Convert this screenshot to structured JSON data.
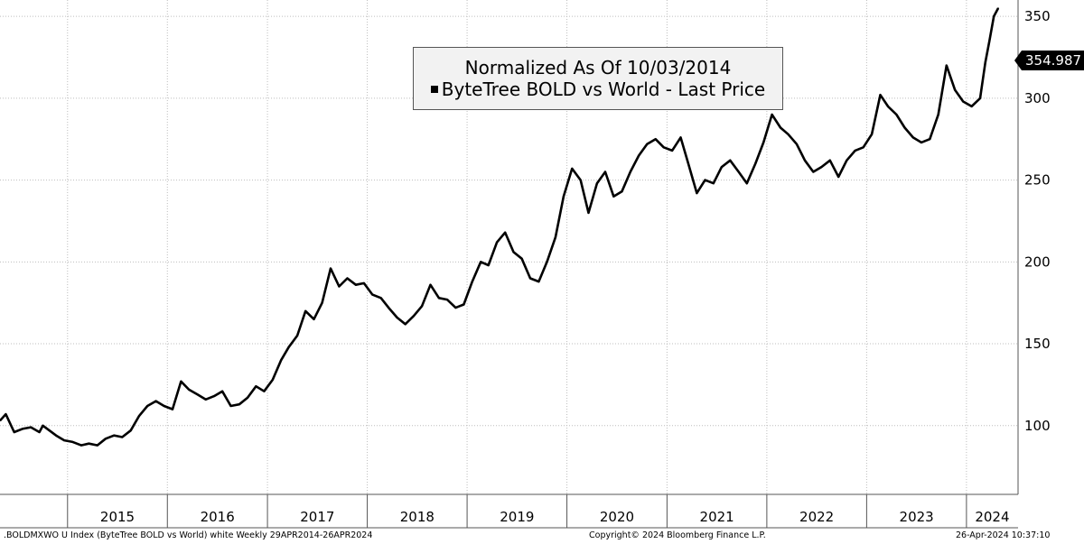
{
  "chart_data": {
    "type": "line",
    "title": "Normalized As Of 10/03/2014",
    "series": [
      {
        "name": "ByteTree BOLD vs World - Last Price",
        "color": "#000000",
        "x": [
          "2014-04-29",
          "2014-05-20",
          "2014-06-20",
          "2014-07-20",
          "2014-08-20",
          "2014-09-20",
          "2014-10-03",
          "2014-11-20",
          "2014-12-20",
          "2015-01-20",
          "2015-02-20",
          "2015-03-20",
          "2015-04-20",
          "2015-05-20",
          "2015-06-20",
          "2015-07-20",
          "2015-08-20",
          "2015-09-20",
          "2015-10-20",
          "2015-11-20",
          "2015-12-20",
          "2016-01-20",
          "2016-02-20",
          "2016-03-20",
          "2016-04-20",
          "2016-05-20",
          "2016-06-20",
          "2016-07-20",
          "2016-08-20",
          "2016-09-20",
          "2016-10-20",
          "2016-11-20",
          "2016-12-20",
          "2017-01-20",
          "2017-02-20",
          "2017-03-20",
          "2017-04-20",
          "2017-05-20",
          "2017-06-20",
          "2017-07-20",
          "2017-08-20",
          "2017-09-20",
          "2017-10-20",
          "2017-11-20",
          "2017-12-20",
          "2018-01-20",
          "2018-02-20",
          "2018-03-20",
          "2018-04-20",
          "2018-05-20",
          "2018-06-20",
          "2018-07-20",
          "2018-08-20",
          "2018-09-20",
          "2018-10-20",
          "2018-11-20",
          "2018-12-20",
          "2019-01-20",
          "2019-02-20",
          "2019-03-20",
          "2019-04-20",
          "2019-05-20",
          "2019-06-20",
          "2019-07-20",
          "2019-08-20",
          "2019-09-20",
          "2019-10-20",
          "2019-11-20",
          "2019-12-20",
          "2020-01-20",
          "2020-02-20",
          "2020-03-20",
          "2020-04-20",
          "2020-05-20",
          "2020-06-20",
          "2020-07-20",
          "2020-08-20",
          "2020-09-20",
          "2020-10-20",
          "2020-11-20",
          "2020-12-20",
          "2021-01-20",
          "2021-02-20",
          "2021-03-20",
          "2021-04-20",
          "2021-05-20",
          "2021-06-20",
          "2021-07-20",
          "2021-08-20",
          "2021-09-20",
          "2021-10-20",
          "2021-11-20",
          "2021-12-20",
          "2022-01-20",
          "2022-02-20",
          "2022-03-20",
          "2022-04-20",
          "2022-05-20",
          "2022-06-20",
          "2022-07-20",
          "2022-08-20",
          "2022-09-20",
          "2022-10-20",
          "2022-11-20",
          "2022-12-20",
          "2023-01-20",
          "2023-02-20",
          "2023-03-20",
          "2023-04-20",
          "2023-05-20",
          "2023-06-20",
          "2023-07-20",
          "2023-08-20",
          "2023-09-20",
          "2023-10-20",
          "2023-11-20",
          "2023-12-20",
          "2024-01-20",
          "2024-02-20",
          "2024-03-10",
          "2024-03-25",
          "2024-04-10",
          "2024-04-26"
        ],
        "values": [
          103,
          107,
          96,
          98,
          99,
          96,
          100,
          94,
          91,
          90,
          88,
          89,
          88,
          92,
          94,
          93,
          97,
          106,
          112,
          115,
          112,
          110,
          127,
          122,
          119,
          116,
          118,
          121,
          112,
          113,
          117,
          124,
          121,
          128,
          140,
          148,
          155,
          170,
          165,
          175,
          196,
          185,
          190,
          186,
          187,
          180,
          178,
          172,
          166,
          162,
          167,
          173,
          186,
          178,
          177,
          172,
          174,
          188,
          200,
          198,
          212,
          218,
          206,
          202,
          190,
          188,
          200,
          215,
          240,
          257,
          250,
          230,
          248,
          255,
          240,
          243,
          255,
          265,
          272,
          275,
          270,
          268,
          276,
          260,
          242,
          250,
          248,
          258,
          262,
          255,
          248,
          260,
          273,
          290,
          282,
          278,
          272,
          262,
          255,
          258,
          262,
          252,
          262,
          268,
          270,
          278,
          302,
          295,
          290,
          282,
          276,
          273,
          275,
          290,
          320,
          305,
          298,
          295,
          300,
          322,
          335,
          350,
          355
        ]
      }
    ],
    "ylim": [
      58,
      360
    ],
    "y_ticks": [
      100,
      150,
      200,
      250,
      300,
      350
    ],
    "x_tick_labels": [
      "2015",
      "2016",
      "2017",
      "2018",
      "2019",
      "2020",
      "2021",
      "2022",
      "2023",
      "2024"
    ],
    "grid": true,
    "legend_position": "top-center",
    "last_value_label": "354.987",
    "footer": {
      "left": ".BOLDMXWO U Index (ByteTree BOLD vs World) white  Weekly 29APR2014-26APR2024",
      "center": "Copyright© 2024 Bloomberg Finance L.P.",
      "right": "26-Apr-2024 10:37:10"
    }
  }
}
